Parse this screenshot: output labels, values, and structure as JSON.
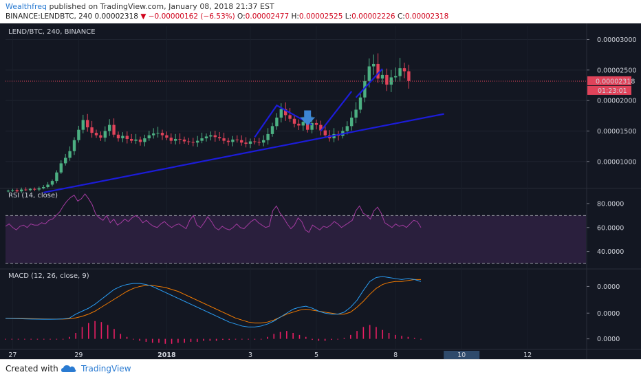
{
  "header": {
    "author": "Wealthfreq",
    "published_text": "published on TradingView.com, January 08, 2018 21:37 EST",
    "symbol": "BINANCE:LENDBTC, 240",
    "last": "0.00002318",
    "change_arrow": "▼",
    "change": "−0.00000162 (−6.53%)",
    "o_label": "O:",
    "o_value": "0.00002477",
    "h_label": "H:",
    "h_value": "0.00002525",
    "l_label": "L:",
    "l_value": "0.00002226",
    "c_label": "C:",
    "c_value": "0.00002318"
  },
  "footer": {
    "created_with": "Created with",
    "brand": "TradingView",
    "logo_icon": "cloud-logo-icon"
  },
  "colors": {
    "background": "#131722",
    "up": "#4caf82",
    "down": "#e0435a",
    "trendline": "#1c1cd9",
    "arrow": "#3d86d4",
    "rsi": "#a33ba0",
    "rsi_band": "#2a1f3d",
    "macd": "#2a9df4",
    "signal": "#f57c00",
    "hist": "#e91e63"
  },
  "chart_data": [
    {
      "type": "candlestick",
      "title": "LEND/BTC, 240, BINANCE",
      "x_ticks": [
        "27",
        "29",
        "2018",
        "3",
        "5",
        "8",
        "10",
        "12"
      ],
      "x_highlight": "10",
      "y_ticks": [
        "0.00003000",
        "0.00002500",
        "0.00002000",
        "0.00001500",
        "0.00001000"
      ],
      "ylim": [
        5.8e-06,
        3.22e-05
      ],
      "last_price": "0.00002318",
      "countdown": "01:23:01",
      "close": [
        5.2e-06,
        5.3e-06,
        5.1e-06,
        5.4e-06,
        5.3e-06,
        5.5e-06,
        5.4e-06,
        5.6e-06,
        5.8e-06,
        6.2e-06,
        6.8e-06,
        8.2e-06,
        9.7e-06,
        1.06e-05,
        1.17e-05,
        1.35e-05,
        1.52e-05,
        1.68e-05,
        1.56e-05,
        1.47e-05,
        1.43e-05,
        1.39e-05,
        1.5e-05,
        1.6e-05,
        1.44e-05,
        1.38e-05,
        1.42e-05,
        1.37e-05,
        1.34e-05,
        1.36e-05,
        1.32e-05,
        1.38e-05,
        1.43e-05,
        1.46e-05,
        1.47e-05,
        1.43e-05,
        1.39e-05,
        1.34e-05,
        1.37e-05,
        1.36e-05,
        1.33e-05,
        1.32e-05,
        1.31e-05,
        1.34e-05,
        1.38e-05,
        1.41e-05,
        1.43e-05,
        1.4e-05,
        1.38e-05,
        1.34e-05,
        1.32e-05,
        1.36e-05,
        1.35e-05,
        1.31e-05,
        1.29e-05,
        1.33e-05,
        1.32e-05,
        1.31e-05,
        1.35e-05,
        1.45e-05,
        1.58e-05,
        1.72e-05,
        1.86e-05,
        1.76e-05,
        1.7e-05,
        1.62e-05,
        1.59e-05,
        1.65e-05,
        1.52e-05,
        1.63e-05,
        1.6e-05,
        1.51e-05,
        1.43e-05,
        1.38e-05,
        1.45e-05,
        1.42e-05,
        1.5e-05,
        1.58e-05,
        1.72e-05,
        1.85e-05,
        2.05e-05,
        2.32e-05,
        2.56e-05,
        2.6e-05,
        2.36e-05,
        2.42e-05,
        2.26e-05,
        2.38e-05,
        2.4e-05,
        2.53e-05,
        2.48e-05,
        2.32e-05
      ],
      "trendlines": [
        {
          "points": [
            [
              8,
              4.9e-06
            ],
            [
              99,
              1.78e-05
            ]
          ]
        },
        {
          "points": [
            [
              56,
              1.4e-05
            ],
            [
              61,
              1.92e-05
            ],
            [
              66,
              1.72e-05
            ],
            [
              69,
              1.6e-05
            ]
          ]
        },
        {
          "points": [
            [
              71,
              1.5e-05
            ],
            [
              78,
              2.15e-05
            ]
          ]
        },
        {
          "points": [
            [
              79,
              2.05e-05
            ],
            [
              85,
              2.52e-05
            ]
          ]
        }
      ],
      "annotation": {
        "type": "down-arrow",
        "at_index": 68,
        "price": 1.68e-05
      }
    },
    {
      "type": "line",
      "title": "RSI (14, close)",
      "y_ticks": [
        "80.0000",
        "60.0000",
        "40.0000"
      ],
      "ylim": [
        26,
        92
      ],
      "band": [
        30,
        70
      ],
      "series": [
        {
          "values": [
            61,
            63,
            60,
            58,
            61,
            62,
            60,
            63,
            62,
            62,
            64,
            63,
            66,
            67,
            70,
            73,
            78,
            82,
            85,
            87,
            82,
            84,
            88,
            84,
            79,
            71,
            68,
            66,
            70,
            64,
            67,
            62,
            64,
            67,
            65,
            68,
            70,
            68,
            64,
            66,
            63,
            61,
            60,
            63,
            65,
            62,
            60,
            62,
            63,
            61,
            59,
            66,
            70,
            62,
            60,
            64,
            69,
            65,
            60,
            58,
            61,
            59,
            58,
            60,
            63,
            60,
            59,
            62,
            65,
            67,
            64,
            62,
            60,
            61,
            74,
            78,
            72,
            68,
            63,
            59,
            62,
            68,
            65,
            58,
            56,
            62,
            60,
            58,
            61,
            60,
            62,
            65,
            63,
            60,
            62,
            64,
            66,
            74,
            78,
            72,
            70,
            67,
            74,
            77,
            72,
            64,
            62,
            60,
            63,
            61,
            62,
            60,
            63,
            66,
            65,
            60
          ]
        }
      ]
    },
    {
      "type": "line",
      "title": "MACD (12, 26, close, 9)",
      "y_ticks": [
        "0.0000",
        "0.0000",
        "0.0000"
      ],
      "ylim": [
        -3.2e-06,
        4.8e-06
      ],
      "series": [
        {
          "values": [
            -1.2e-07,
            -1.4e-07,
            -1.6e-07,
            -1.8e-07,
            -2e-07,
            -2.1e-07,
            -2.2e-07,
            -2.2e-07,
            -2.1e-07,
            -1.8e-07,
            -1e-07,
            3e-07,
            6e-07,
            9e-07,
            1.3e-06,
            1.8e-06,
            2.3e-06,
            2.8e-06,
            3.1e-06,
            3.3e-06,
            3.4e-06,
            3.4e-06,
            3.3e-06,
            3.1e-06,
            2.8e-06,
            2.5e-06,
            2.2e-06,
            1.9e-06,
            1.6e-06,
            1.3e-06,
            1e-06,
            7e-07,
            4e-07,
            1e-07,
            -2e-07,
            -5e-07,
            -7e-07,
            -9e-07,
            -1e-06,
            -1e-06,
            -9e-07,
            -7e-07,
            -4e-07,
            0,
            4e-07,
            8e-07,
            1e-06,
            1.1e-06,
            9e-07,
            6e-07,
            4e-07,
            3e-07,
            3e-07,
            5e-07,
            1e-06,
            1.7e-06,
            2.7e-06,
            3.6e-06,
            4e-06,
            4.1e-06,
            4e-06,
            3.9e-06,
            3.8e-06,
            3.9e-06,
            3.8e-06,
            3.6e-06
          ]
        },
        {
          "values": [
            -1e-07,
            -1.1e-07,
            -1.2e-07,
            -1.4e-07,
            -1.6e-07,
            -1.7e-07,
            -1.9e-07,
            -2e-07,
            -2e-07,
            -2e-07,
            -1.7e-07,
            -8e-08,
            8e-08,
            3e-07,
            6e-07,
            1e-06,
            1.4e-06,
            1.8e-06,
            2.2e-06,
            2.6e-06,
            2.9e-06,
            3.1e-06,
            3.2e-06,
            3.2e-06,
            3.1e-06,
            3e-06,
            2.8e-06,
            2.6e-06,
            2.3e-06,
            2e-06,
            1.7e-06,
            1.4e-06,
            1.1e-06,
            8e-07,
            5e-07,
            2e-07,
            -1e-07,
            -3e-07,
            -5e-07,
            -6e-07,
            -6e-07,
            -5e-07,
            -3e-07,
            0,
            3e-07,
            5e-07,
            7e-07,
            8e-07,
            7e-07,
            6e-07,
            5e-07,
            4e-07,
            3e-07,
            3e-07,
            5e-07,
            1e-06,
            1.6e-06,
            2.3e-06,
            2.9e-06,
            3.3e-06,
            3.5e-06,
            3.6e-06,
            3.6e-06,
            3.7e-06,
            3.8e-06,
            3.8e-06
          ]
        }
      ],
      "histogram": [
        0,
        0,
        0,
        0,
        0,
        0,
        0,
        0,
        0,
        0,
        2e-07,
        6e-07,
        1.2e-06,
        1.6e-06,
        1.8e-06,
        1.7e-06,
        1.4e-06,
        1e-06,
        5e-07,
        2e-07,
        0,
        -2e-07,
        -3e-07,
        -4e-07,
        -4e-07,
        -5e-07,
        -5e-07,
        -4e-07,
        -4e-07,
        -3e-07,
        -3e-07,
        -2e-07,
        -2e-07,
        -2e-07,
        -1e-07,
        -1e-07,
        0,
        0,
        0,
        0,
        0,
        2e-07,
        5e-07,
        7e-07,
        8e-07,
        6e-07,
        4e-07,
        2e-07,
        -1e-07,
        -2e-07,
        -2e-07,
        -1e-07,
        0,
        1e-07,
        4e-07,
        8e-07,
        1.2e-06,
        1.4e-06,
        1.2e-06,
        9e-07,
        6e-07,
        4e-07,
        3e-07,
        2e-07,
        1e-07,
        0
      ]
    }
  ]
}
